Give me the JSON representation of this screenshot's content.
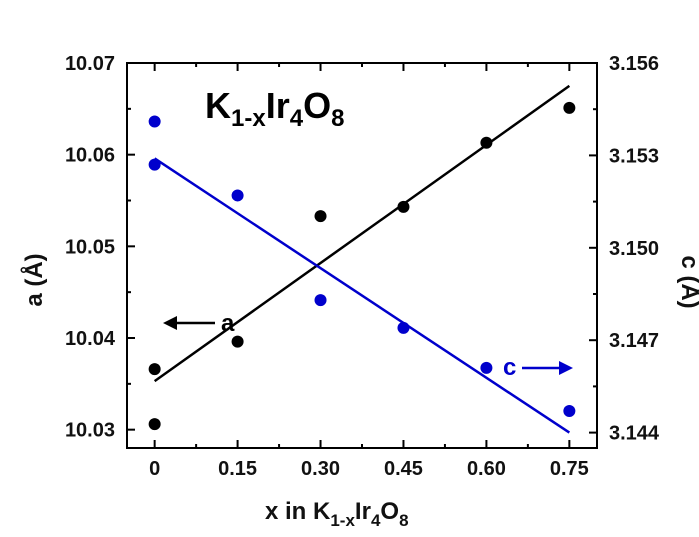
{
  "chart_data": {
    "type": "scatter",
    "title": {
      "main": "K",
      "sub1": "1-x",
      "mid": "Ir",
      "sub2": "4",
      "end": "O",
      "sub3": "8"
    },
    "xlabel": {
      "main": "x in K",
      "sub1": "1-x",
      "mid": "Ir",
      "sub2": "4",
      "end": "O",
      "sub3": "8"
    },
    "ylabel_left": "a (Å)",
    "ylabel_right": "c (Å)",
    "xlim": [
      -0.05,
      0.8
    ],
    "ylim_left": [
      10.028,
      10.07
    ],
    "ylim_right": [
      3.1435,
      3.156
    ],
    "x_ticks": [
      0,
      0.15,
      0.3,
      0.45,
      0.6,
      0.75
    ],
    "x_tick_labels": [
      "0",
      "0.15",
      "0.30",
      "0.45",
      "0.60",
      "0.75"
    ],
    "y_left_ticks": [
      10.03,
      10.04,
      10.05,
      10.06,
      10.07
    ],
    "y_left_tick_labels": [
      "10.03",
      "10.04",
      "10.05",
      "10.06",
      "10.07"
    ],
    "y_right_ticks": [
      3.144,
      3.147,
      3.15,
      3.153,
      3.156
    ],
    "y_right_tick_labels": [
      "3.144",
      "3.147",
      "3.150",
      "3.153",
      "3.156"
    ],
    "series": [
      {
        "name": "a",
        "axis": "left",
        "color": "#000000",
        "points": [
          [
            0,
            10.0366
          ],
          [
            0,
            10.0306
          ],
          [
            0.15,
            10.0396
          ],
          [
            0.3,
            10.0533
          ],
          [
            0.45,
            10.0543
          ],
          [
            0.6,
            10.0613
          ],
          [
            0.75,
            10.0651
          ]
        ],
        "fit": [
          [
            0,
            10.0353
          ],
          [
            0.75,
            10.0675
          ]
        ]
      },
      {
        "name": "c",
        "axis": "right",
        "color": "#0000cc",
        "points": [
          [
            0,
            3.1541
          ],
          [
            0,
            3.1527
          ],
          [
            0.15,
            3.1517
          ],
          [
            0.3,
            3.1483
          ],
          [
            0.45,
            3.1474
          ],
          [
            0.6,
            3.1461
          ],
          [
            0.75,
            3.1447
          ]
        ],
        "fit": [
          [
            0,
            3.1529
          ],
          [
            0.75,
            3.144
          ]
        ]
      }
    ],
    "annotations": [
      {
        "text": "a",
        "arrow": "left",
        "color": "#000000"
      },
      {
        "text": "c",
        "arrow": "right",
        "color": "#0000cc"
      }
    ],
    "grid": false,
    "legend": "none"
  }
}
